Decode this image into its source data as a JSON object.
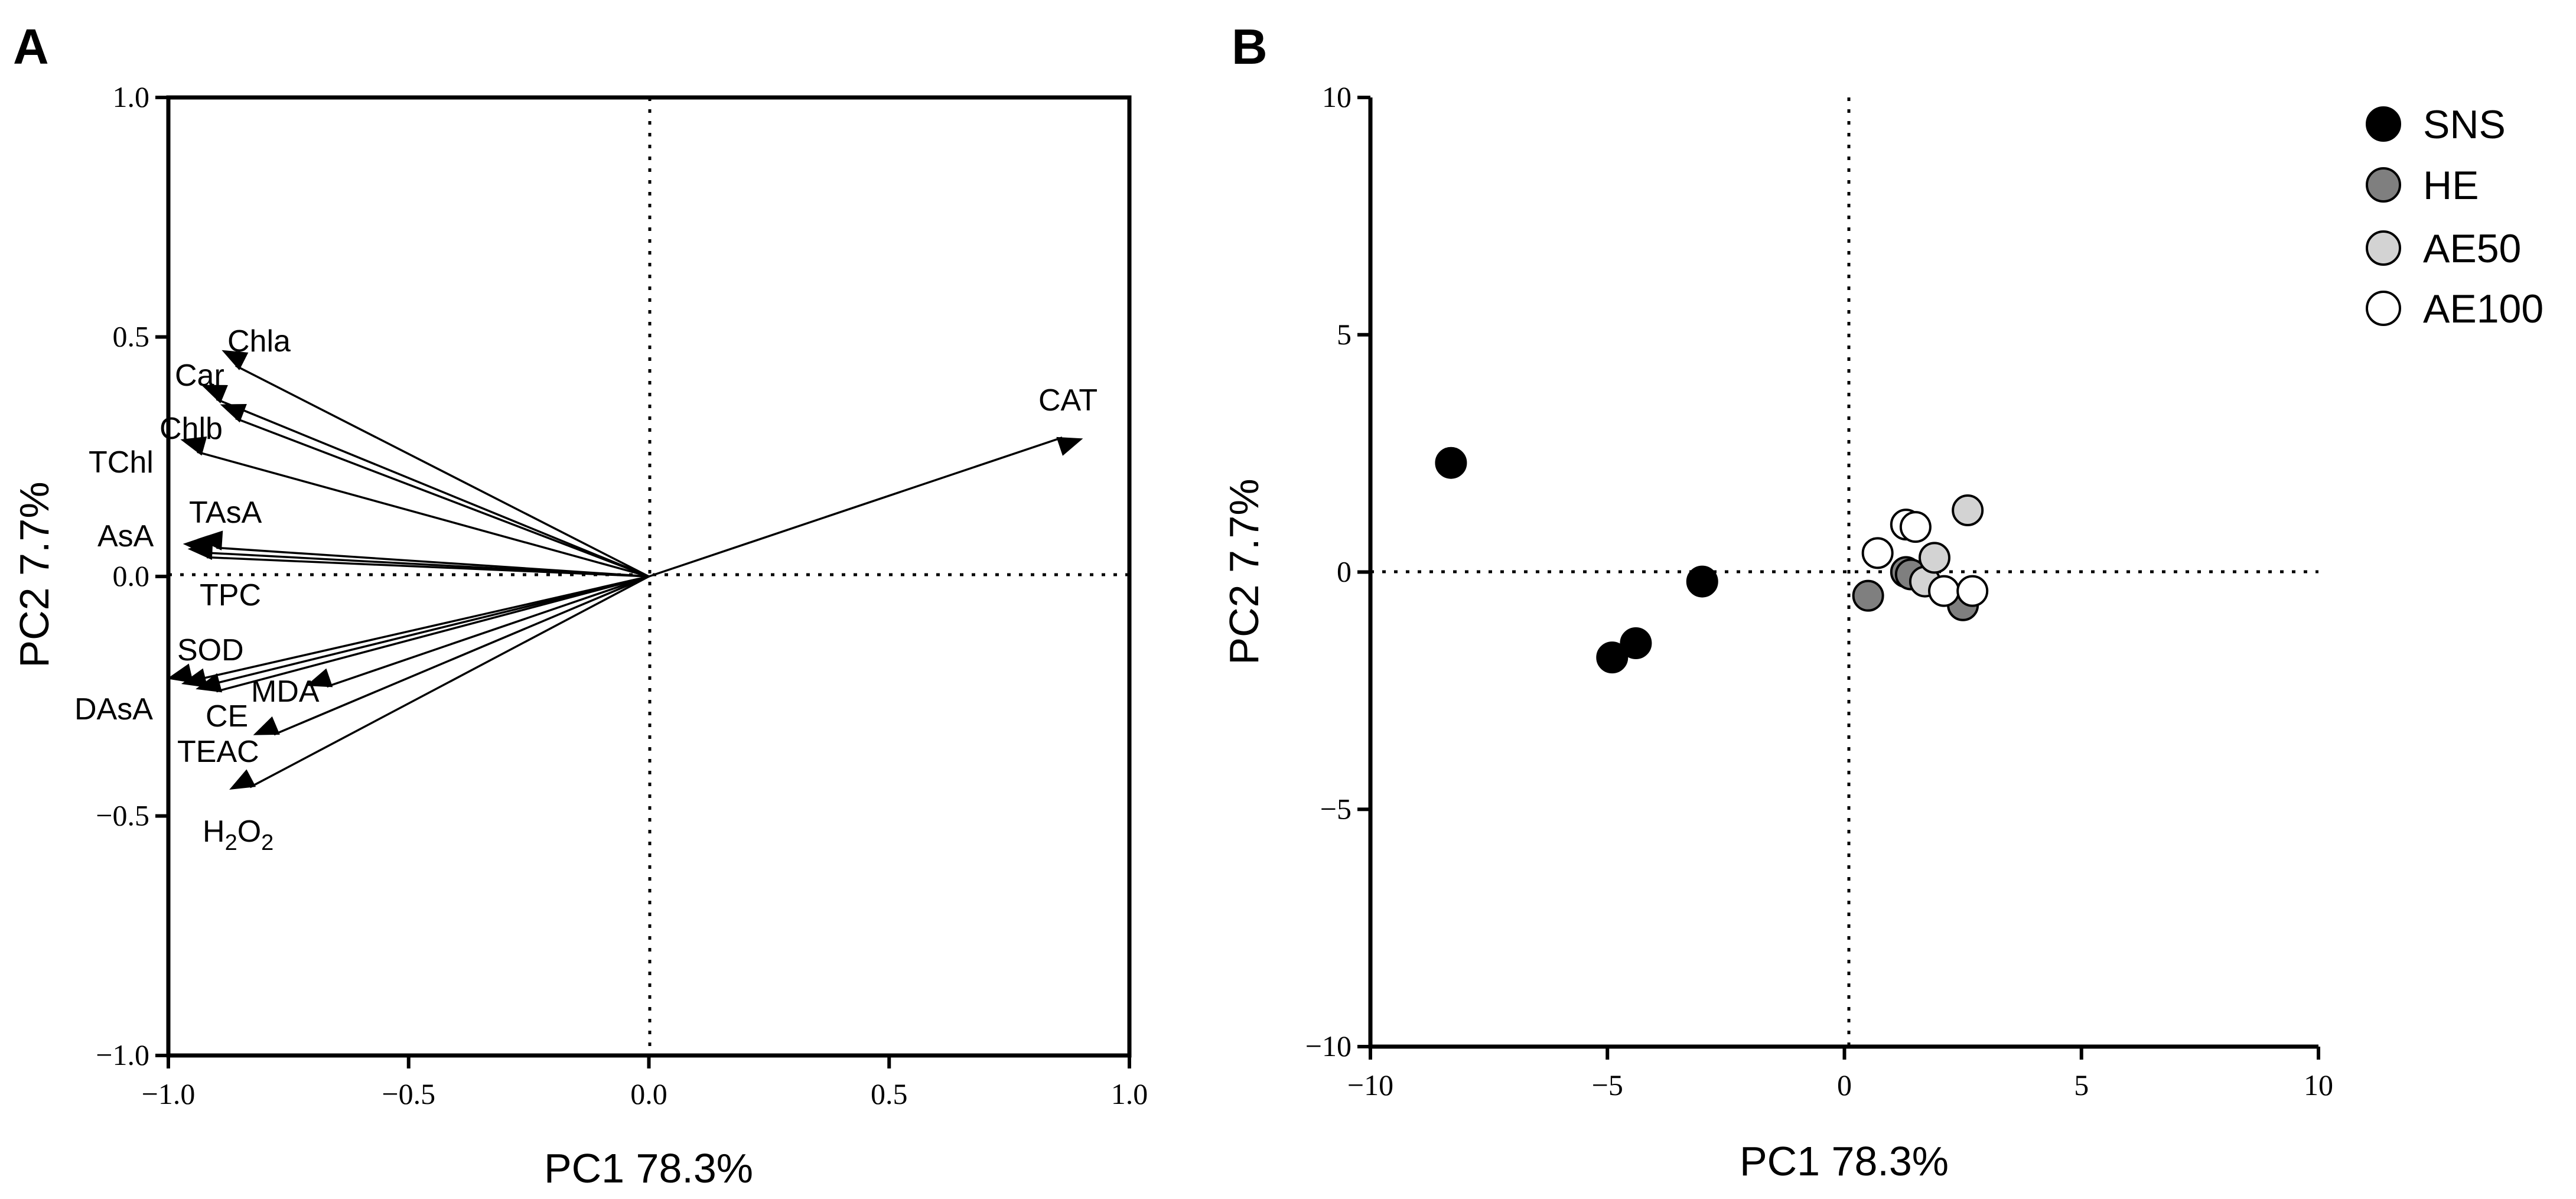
{
  "chart_data": [
    {
      "type": "biplot-loadings",
      "panel": "A",
      "xlabel": "PC1 78.3%",
      "ylabel": "PC2 7.7%",
      "xlim": [
        -1.0,
        1.0
      ],
      "ylim": [
        -1.0,
        1.0
      ],
      "xticks": [
        "−1.0",
        "−0.5",
        "0.0",
        "0.5",
        "1.0"
      ],
      "yticks": [
        "−1.0",
        "−0.5",
        "0.0",
        "0.5",
        "1.0"
      ],
      "xtick_values": [
        -1.0,
        -0.5,
        0.0,
        0.5,
        1.0
      ],
      "ytick_values": [
        -1.0,
        -0.5,
        0.0,
        0.5,
        1.0
      ],
      "vectors": [
        {
          "name": "Chla",
          "x": -0.86,
          "y": 0.44
        },
        {
          "name": "Car",
          "x": -0.9,
          "y": 0.37
        },
        {
          "name": "Chlb",
          "x": -0.86,
          "y": 0.33
        },
        {
          "name": "TChl",
          "x": -0.94,
          "y": 0.26
        },
        {
          "name": "TAsA",
          "x": -0.9,
          "y": 0.06
        },
        {
          "name": "AsA",
          "x": -0.93,
          "y": 0.05
        },
        {
          "name": "TPC",
          "x": -0.92,
          "y": 0.04
        },
        {
          "name": "SOD",
          "x": -0.96,
          "y": -0.22
        },
        {
          "name": "DAsA",
          "x": -0.93,
          "y": -0.23
        },
        {
          "name": "CE",
          "x": -0.9,
          "y": -0.24
        },
        {
          "name": "MDA",
          "x": -0.67,
          "y": -0.23
        },
        {
          "name": "TEAC",
          "x": -0.78,
          "y": -0.33
        },
        {
          "name": "H2O2",
          "x": -0.83,
          "y": -0.44
        },
        {
          "name": "CAT",
          "x": 0.86,
          "y": 0.29
        }
      ],
      "labels": {
        "Chla": "Chla",
        "Car": "Car",
        "Chlb": "Chlb",
        "TChl": "TChl",
        "TAsA": "TAsA",
        "AsA": "AsA",
        "TPC": "TPC",
        "SOD": "SOD",
        "DAsA": "DAsA",
        "CE": "CE",
        "MDA": "MDA",
        "TEAC": "TEAC",
        "H2O2_main": "H",
        "H2O2_sub1": "2",
        "H2O2_mid": "O",
        "H2O2_sub2": "2",
        "CAT": "CAT"
      }
    },
    {
      "type": "scatter",
      "panel": "B",
      "xlabel": "PC1 78.3%",
      "ylabel": "PC2 7.7%",
      "xlim": [
        -10,
        10
      ],
      "ylim": [
        -10,
        10
      ],
      "xticks": [
        "−10",
        "−5",
        "0",
        "5",
        "10"
      ],
      "yticks": [
        "−10",
        "−5",
        "0",
        "5",
        "10"
      ],
      "xtick_values": [
        -10,
        -5,
        0,
        5,
        10
      ],
      "ytick_values": [
        -10,
        -5,
        0,
        5,
        10
      ],
      "series": [
        {
          "name": "SNS",
          "color": "#000000",
          "points": [
            [
              -8.3,
              2.3
            ],
            [
              -4.9,
              -1.8
            ],
            [
              -4.4,
              -1.5
            ],
            [
              -3.0,
              -0.2
            ]
          ]
        },
        {
          "name": "HE",
          "color": "#7f7f7f",
          "points": [
            [
              0.5,
              -0.5
            ],
            [
              1.3,
              0.0
            ],
            [
              1.4,
              -0.05
            ],
            [
              2.5,
              -0.7
            ]
          ]
        },
        {
          "name": "AE50",
          "color": "#d3d3d3",
          "points": [
            [
              1.7,
              -0.2
            ],
            [
              1.9,
              0.3
            ],
            [
              2.6,
              1.3
            ]
          ]
        },
        {
          "name": "AE100",
          "color": "#ffffff",
          "points": [
            [
              0.7,
              0.4
            ],
            [
              1.3,
              1.0
            ],
            [
              1.5,
              0.95
            ],
            [
              2.1,
              -0.4
            ],
            [
              2.7,
              -0.4
            ]
          ]
        }
      ]
    }
  ],
  "panels": {
    "a": "A",
    "b": "B"
  },
  "legend": [
    "SNS",
    "HE",
    "AE50",
    "AE100"
  ]
}
